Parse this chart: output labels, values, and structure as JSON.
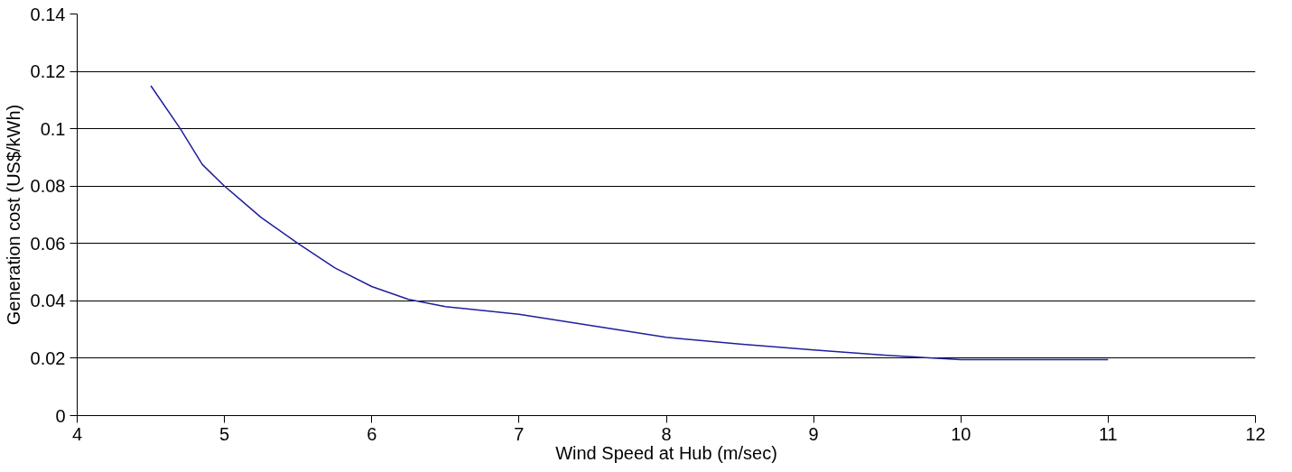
{
  "chart_data": {
    "type": "line",
    "xlabel": "Wind Speed at Hub (m/sec)",
    "ylabel": "Generation cost (US$/kWh)",
    "x": [
      4.5,
      4.7,
      4.85,
      5,
      5.25,
      5.5,
      5.75,
      6,
      6.25,
      6.5,
      7,
      7.5,
      8,
      8.5,
      9,
      9.5,
      10,
      10.5,
      11
    ],
    "series": [
      {
        "color": "#1f1f9f",
        "values": [
          0.115,
          0.1,
          0.0875,
          0.08,
          0.069,
          0.06,
          0.0515,
          0.045,
          0.0405,
          0.038,
          0.0353,
          0.0313,
          0.0273,
          0.0249,
          0.0229,
          0.021,
          0.0195,
          0.0195,
          0.0195
        ]
      }
    ],
    "xlim": [
      4,
      12
    ],
    "xticks": [
      4,
      5,
      6,
      7,
      8,
      9,
      10,
      11,
      12
    ],
    "ylim": [
      0,
      0.14
    ],
    "yticks": [
      {
        "value": 0,
        "label": "0"
      },
      {
        "value": 0.02,
        "label": "0.02"
      },
      {
        "value": 0.04,
        "label": "0.04"
      },
      {
        "value": 0.06,
        "label": "0.06"
      },
      {
        "value": 0.08,
        "label": "0.08"
      },
      {
        "value": 0.1,
        "label": "0.1"
      },
      {
        "value": 0.12,
        "label": "0.12"
      },
      {
        "value": 0.14,
        "label": "0.14"
      }
    ],
    "grid": "y",
    "marker": "none",
    "line_style": "solid"
  }
}
